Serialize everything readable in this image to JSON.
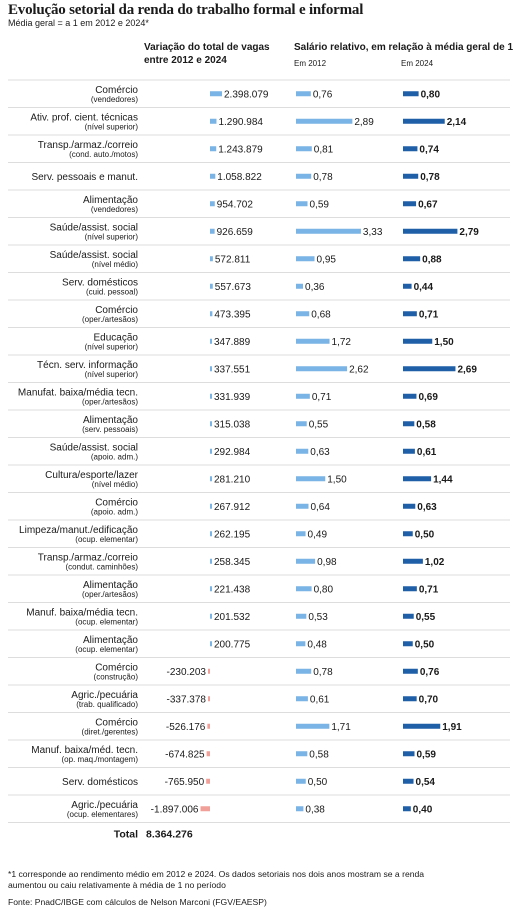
{
  "title": "Evolução setorial da renda do trabalho formal e informal",
  "subtitle": "Média geral = a 1 em 2012 e 2024*",
  "columns": {
    "vagas_header_line1": "Variação do total de vagas",
    "vagas_header_line2": "entre 2012 e 2024",
    "salario_header": "Salário relativo, em relação à média geral de 1",
    "em2012": "Em 2012",
    "em2024": "Em 2024"
  },
  "footnote_line1": "*1 corresponde ao rendimento médio em 2012 e 2024. Os dados setoriais nos dois anos mostram se a renda",
  "footnote_line2": "aumentou ou caiu relativamente à média de 1 no período",
  "source": "Fonte: PnadC/IBGE com cálculos de Nelson Marconi (FGV/EAESP)",
  "total_label": "Total",
  "total_value": "8.364.276",
  "colors": {
    "positive_vagas": "#7ab4e6",
    "negative_vagas": "#f0a098",
    "sal2012": "#7ab4e6",
    "sal2024": "#1f5fa8",
    "grid": "#dddddd"
  },
  "chart_data": {
    "type": "bar",
    "rows": [
      {
        "label": "Comércio",
        "sub": "(vendedores)",
        "vagas": 2398079,
        "vagas_label": "2.398.079",
        "s2012": 0.76,
        "s2012_label": "0,76",
        "s2024": 0.8,
        "s2024_label": "0,80"
      },
      {
        "label": "Ativ. prof. cient. técnicas",
        "sub": "(nível superior)",
        "vagas": 1290984,
        "vagas_label": "1.290.984",
        "s2012": 2.89,
        "s2012_label": "2,89",
        "s2024": 2.14,
        "s2024_label": "2,14"
      },
      {
        "label": "Transp./armaz./correio",
        "sub": "(cond. auto./motos)",
        "vagas": 1243879,
        "vagas_label": "1.243.879",
        "s2012": 0.81,
        "s2012_label": "0,81",
        "s2024": 0.74,
        "s2024_label": "0,74"
      },
      {
        "label": "Serv. pessoais e manut.",
        "sub": "",
        "vagas": 1058822,
        "vagas_label": "1.058.822",
        "s2012": 0.78,
        "s2012_label": "0,78",
        "s2024": 0.78,
        "s2024_label": "0,78"
      },
      {
        "label": "Alimentação",
        "sub": "(vendedores)",
        "vagas": 954702,
        "vagas_label": "954.702",
        "s2012": 0.59,
        "s2012_label": "0,59",
        "s2024": 0.67,
        "s2024_label": "0,67"
      },
      {
        "label": "Saúde/assist. social",
        "sub": "(nível superior)",
        "vagas": 926659,
        "vagas_label": "926.659",
        "s2012": 3.33,
        "s2012_label": "3,33",
        "s2024": 2.79,
        "s2024_label": "2,79"
      },
      {
        "label": "Saúde/assist. social",
        "sub": "(nível médio)",
        "vagas": 572811,
        "vagas_label": "572.811",
        "s2012": 0.95,
        "s2012_label": "0,95",
        "s2024": 0.88,
        "s2024_label": "0,88"
      },
      {
        "label": "Serv. domésticos",
        "sub": "(cuid. pessoal)",
        "vagas": 557673,
        "vagas_label": "557.673",
        "s2012": 0.36,
        "s2012_label": "0,36",
        "s2024": 0.44,
        "s2024_label": "0,44"
      },
      {
        "label": "Comércio",
        "sub": "(oper./artesãos)",
        "vagas": 473395,
        "vagas_label": "473.395",
        "s2012": 0.68,
        "s2012_label": "0,68",
        "s2024": 0.71,
        "s2024_label": "0,71"
      },
      {
        "label": "Educação",
        "sub": "(nível superior)",
        "vagas": 347889,
        "vagas_label": "347.889",
        "s2012": 1.72,
        "s2012_label": "1,72",
        "s2024": 1.5,
        "s2024_label": "1,50"
      },
      {
        "label": "Técn. serv. informação",
        "sub": "(nível superior)",
        "vagas": 337551,
        "vagas_label": "337.551",
        "s2012": 2.62,
        "s2012_label": "2,62",
        "s2024": 2.69,
        "s2024_label": "2,69"
      },
      {
        "label": "Manufat. baixa/média tecn.",
        "sub": "(oper./artesãos)",
        "vagas": 331939,
        "vagas_label": "331.939",
        "s2012": 0.71,
        "s2012_label": "0,71",
        "s2024": 0.69,
        "s2024_label": "0,69"
      },
      {
        "label": "Alimentação",
        "sub": "(serv. pessoais)",
        "vagas": 315038,
        "vagas_label": "315.038",
        "s2012": 0.55,
        "s2012_label": "0,55",
        "s2024": 0.58,
        "s2024_label": "0,58"
      },
      {
        "label": "Saúde/assist. social",
        "sub": "(apoio. adm.)",
        "vagas": 292984,
        "vagas_label": "292.984",
        "s2012": 0.63,
        "s2012_label": "0,63",
        "s2024": 0.61,
        "s2024_label": "0,61"
      },
      {
        "label": "Cultura/esporte/lazer",
        "sub": "(nível médio)",
        "vagas": 281210,
        "vagas_label": "281.210",
        "s2012": 1.5,
        "s2012_label": "1,50",
        "s2024": 1.44,
        "s2024_label": "1,44"
      },
      {
        "label": "Comércio",
        "sub": "(apoio. adm.)",
        "vagas": 267912,
        "vagas_label": "267.912",
        "s2012": 0.64,
        "s2012_label": "0,64",
        "s2024": 0.63,
        "s2024_label": "0,63"
      },
      {
        "label": "Limpeza/manut./edificação",
        "sub": "(ocup. elementar)",
        "vagas": 262195,
        "vagas_label": "262.195",
        "s2012": 0.49,
        "s2012_label": "0,49",
        "s2024": 0.5,
        "s2024_label": "0,50"
      },
      {
        "label": "Transp./armaz./correio",
        "sub": "(condut. caminhões)",
        "vagas": 258345,
        "vagas_label": "258.345",
        "s2012": 0.98,
        "s2012_label": "0,98",
        "s2024": 1.02,
        "s2024_label": "1,02"
      },
      {
        "label": "Alimentação",
        "sub": "(oper./artesãos)",
        "vagas": 221438,
        "vagas_label": "221.438",
        "s2012": 0.8,
        "s2012_label": "0,80",
        "s2024": 0.71,
        "s2024_label": "0,71"
      },
      {
        "label": "Manuf. baixa/média tecn.",
        "sub": "(ocup. elementar)",
        "vagas": 201532,
        "vagas_label": "201.532",
        "s2012": 0.53,
        "s2012_label": "0,53",
        "s2024": 0.55,
        "s2024_label": "0,55"
      },
      {
        "label": "Alimentação",
        "sub": "(ocup. elementar)",
        "vagas": 200775,
        "vagas_label": "200.775",
        "s2012": 0.48,
        "s2012_label": "0,48",
        "s2024": 0.5,
        "s2024_label": "0,50"
      },
      {
        "label": "Comércio",
        "sub": "(construção)",
        "vagas": -230203,
        "vagas_label": "-230.203",
        "s2012": 0.78,
        "s2012_label": "0,78",
        "s2024": 0.76,
        "s2024_label": "0,76"
      },
      {
        "label": "Agric./pecuária",
        "sub": "(trab. qualificado)",
        "vagas": -337378,
        "vagas_label": "-337.378",
        "s2012": 0.61,
        "s2012_label": "0,61",
        "s2024": 0.7,
        "s2024_label": "0,70"
      },
      {
        "label": "Comércio",
        "sub": "(diret./gerentes)",
        "vagas": -526176,
        "vagas_label": "-526.176",
        "s2012": 1.71,
        "s2012_label": "1,71",
        "s2024": 1.91,
        "s2024_label": "1,91"
      },
      {
        "label": "Manuf. baixa/méd. tecn.",
        "sub": "(op. maq./montagem)",
        "vagas": -674825,
        "vagas_label": "-674.825",
        "s2012": 0.58,
        "s2012_label": "0,58",
        "s2024": 0.59,
        "s2024_label": "0,59"
      },
      {
        "label": "Serv. domésticos",
        "sub": "",
        "vagas": -765950,
        "vagas_label": "-765.950",
        "s2012": 0.5,
        "s2012_label": "0,50",
        "s2024": 0.54,
        "s2024_label": "0,54"
      },
      {
        "label": "Agric./pecuária",
        "sub": "(ocup. elementares)",
        "vagas": -1897006,
        "vagas_label": "-1.897.006",
        "s2012": 0.38,
        "s2012_label": "0,38",
        "s2024": 0.4,
        "s2024_label": "0,40"
      }
    ]
  }
}
